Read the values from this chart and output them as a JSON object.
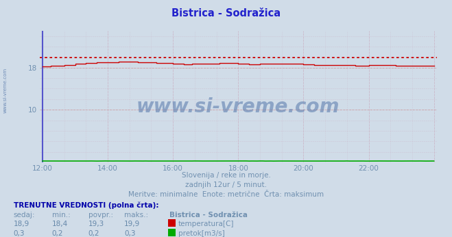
{
  "title": "Bistrica - Sodražica",
  "title_color": "#2222cc",
  "background_color": "#d0dce8",
  "plot_bg_color": "#d0dce8",
  "x_min": 0,
  "x_max": 144,
  "y_min": 0,
  "y_max": 25,
  "y_ticks": [
    10,
    18
  ],
  "x_tick_labels": [
    "12:00",
    "14:00",
    "16:00",
    "18:00",
    "20:00",
    "22:00"
  ],
  "x_tick_positions": [
    0,
    24,
    48,
    72,
    96,
    120
  ],
  "temp_max_line": 19.9,
  "temp_color": "#cc0000",
  "flow_color": "#00aa00",
  "left_axis_color": "#5555cc",
  "bottom_axis_color": "#cc0000",
  "grid_color_h": "#cc9999",
  "grid_color_v": "#ccbbcc",
  "watermark_text_color": "#5577aa",
  "subtitle_color": "#7090b0",
  "table_header_color": "#0000aa",
  "table_val_color": "#6688aa",
  "subtitle1": "Slovenija / reke in morje.",
  "subtitle2": "zadnjih 12ur / 5 minut.",
  "subtitle3": "Meritve: minimalne  Enote: metrične  Črta: maksimum",
  "table_header": "TRENUTNE VREDNOSTI (polna črta):",
  "table_col1": "sedaj:",
  "table_col2": "min.:",
  "table_col3": "povpr.:",
  "table_col4": "maks.:",
  "table_col5": "Bistrica - Sodražica",
  "row1_vals": [
    "18,9",
    "18,4",
    "19,3",
    "19,9"
  ],
  "row2_vals": [
    "0,3",
    "0,2",
    "0,2",
    "0,3"
  ],
  "row1_label": "temperatura[C]",
  "row2_label": "pretok[m3/s]"
}
